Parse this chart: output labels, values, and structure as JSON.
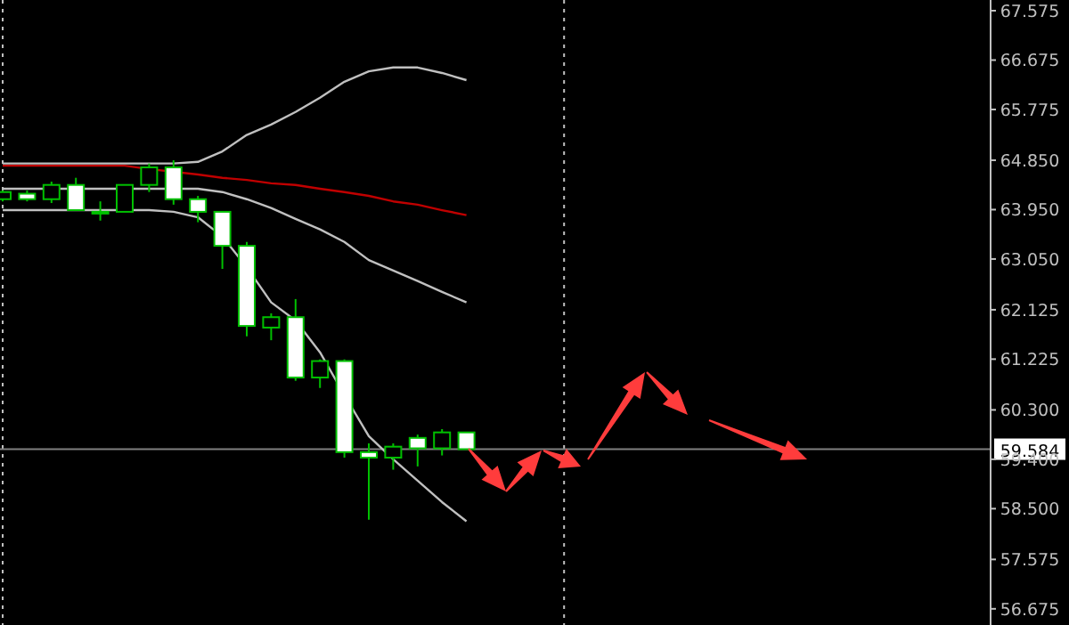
{
  "chart_data": {
    "type": "candlestick",
    "color": "#00c000",
    "categories": [
      null,
      null,
      null,
      null,
      null,
      null,
      null,
      null,
      null,
      null,
      null,
      null,
      null,
      null,
      null,
      null,
      null,
      null,
      null,
      null,
      null,
      null,
      null,
      null,
      null,
      null,
      null,
      null,
      null,
      null,
      null,
      null,
      null,
      null,
      null,
      null,
      null,
      null,
      null,
      null
    ],
    "ohlc": [
      [
        64.14,
        64.3,
        64.1,
        64.27
      ],
      [
        64.24,
        64.3,
        64.1,
        64.14
      ],
      [
        64.14,
        64.46,
        64.07,
        64.4
      ],
      [
        64.4,
        64.53,
        63.94,
        63.94
      ],
      [
        63.91,
        64.1,
        63.75,
        63.91
      ],
      [
        63.91,
        64.4,
        63.91,
        64.4
      ],
      [
        64.4,
        64.79,
        64.27,
        64.72
      ],
      [
        64.72,
        64.85,
        64.04,
        64.14
      ],
      [
        64.14,
        64.2,
        63.72,
        63.91
      ],
      [
        63.91,
        63.91,
        62.87,
        63.29
      ],
      [
        63.29,
        63.36,
        61.64,
        61.83
      ],
      [
        61.8,
        62.06,
        61.57,
        61.99
      ],
      [
        61.99,
        62.32,
        60.83,
        60.89
      ],
      [
        60.89,
        61.22,
        60.7,
        61.19
      ],
      [
        61.19,
        61.22,
        59.43,
        59.53
      ],
      [
        59.53,
        59.69,
        58.3,
        59.43
      ],
      [
        59.43,
        59.69,
        59.21,
        59.63
      ],
      [
        59.79,
        59.85,
        59.27,
        59.6
      ],
      [
        59.6,
        59.95,
        59.47,
        59.89
      ],
      [
        59.89,
        59.89,
        59.58,
        59.584
      ],
      null,
      null,
      null,
      null,
      null,
      null,
      null,
      null,
      null,
      null,
      null,
      null,
      null,
      null,
      null,
      null,
      null,
      null,
      null,
      null
    ],
    "series": [
      {
        "type": "line",
        "color": "#c0c0c0",
        "values": [
          64.79,
          64.79,
          64.79,
          64.79,
          64.79,
          64.79,
          64.79,
          64.79,
          64.82,
          65.01,
          65.31,
          65.5,
          65.73,
          65.99,
          66.28,
          66.47,
          66.54,
          66.54,
          66.44,
          66.31,
          null,
          null,
          null,
          null,
          null,
          null,
          null,
          null,
          null,
          null,
          null,
          null,
          null,
          null,
          null,
          null,
          null,
          null,
          null,
          null
        ]
      },
      {
        "type": "line",
        "color": "#c0c0c0",
        "values": [
          64.33,
          64.33,
          null,
          64.33,
          64.33,
          null,
          64.33,
          64.33,
          64.33,
          64.27,
          64.14,
          63.98,
          63.78,
          63.59,
          63.36,
          63.03,
          62.84,
          62.65,
          62.45,
          62.26,
          null,
          null,
          null,
          null,
          null,
          null,
          null,
          null,
          null,
          null,
          null,
          null,
          null,
          null,
          null,
          null,
          null,
          null,
          null,
          null
        ]
      },
      {
        "type": "line",
        "color": "#c0c0c0",
        "values": [
          63.94,
          63.94,
          63.94,
          63.94,
          63.94,
          null,
          63.94,
          63.91,
          63.81,
          63.46,
          62.9,
          62.26,
          61.93,
          61.35,
          60.57,
          59.82,
          59.4,
          59.01,
          58.62,
          58.27,
          null,
          null,
          null,
          null,
          null,
          null,
          null,
          null,
          null,
          null,
          null,
          null,
          null,
          null,
          null,
          null,
          null,
          null,
          null,
          null
        ]
      },
      {
        "type": "line",
        "color": "#c00000",
        "values": [
          64.75,
          64.75,
          64.75,
          64.75,
          64.75,
          64.75,
          64.69,
          null,
          64.59,
          64.53,
          64.49,
          64.43,
          64.4,
          64.33,
          64.27,
          64.2,
          64.1,
          64.04,
          63.94,
          63.85,
          null,
          null,
          null,
          null,
          null,
          null,
          null,
          null,
          null,
          null,
          null,
          null,
          null,
          null,
          null,
          null,
          null,
          null,
          null,
          null
        ]
      }
    ],
    "ylim": [
      56.38,
      67.77
    ],
    "yticks": [
      56.675,
      57.575,
      {
        "value": 58.5,
        "label": "58.500"
      },
      {
        "value": 59.4,
        "label": "59.400"
      },
      {
        "value": 60.3,
        "label": "60.300"
      },
      61.225,
      62.125,
      {
        "value": 63.05,
        "label": "63.050"
      },
      {
        "value": 63.95,
        "label": "63.950"
      },
      {
        "value": 64.85,
        "label": "64.850"
      },
      65.775,
      66.675,
      67.575
    ],
    "tick_labels": "y",
    "ref_lines": [
      {
        "axis": "y",
        "value": 59.584,
        "label": "59.584",
        "color": "#808080",
        "line_style": "solid"
      }
    ]
  }
}
